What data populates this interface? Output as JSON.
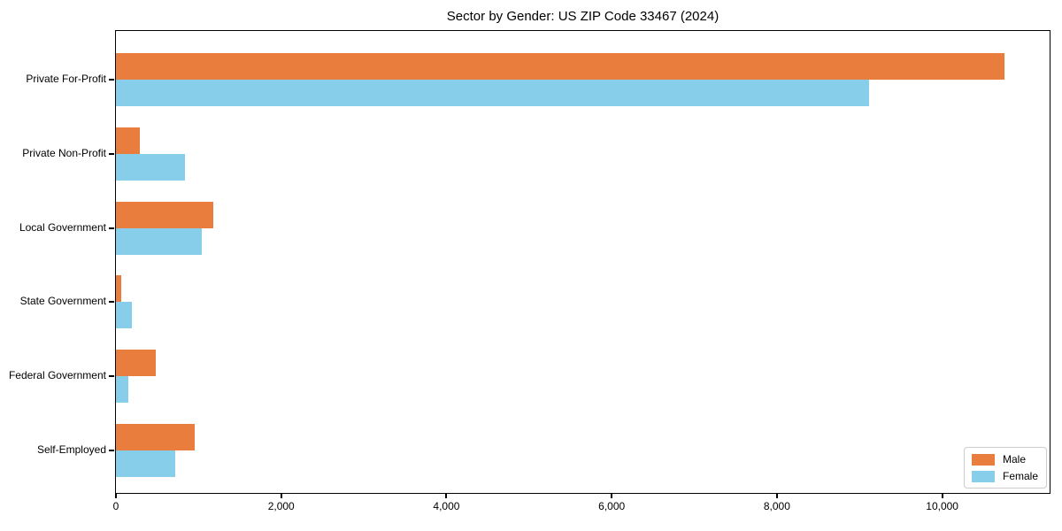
{
  "title": "Sector by Gender: US ZIP Code 33467 (2024)",
  "chart_data": {
    "type": "bar",
    "orientation": "horizontal",
    "title": "Sector by Gender: US ZIP Code 33467 (2024)",
    "categories": [
      "Private For-Profit",
      "Private Non-Profit",
      "Local Government",
      "State Government",
      "Federal Government",
      "Self-Employed"
    ],
    "series": [
      {
        "name": "Male",
        "color": "#E87D3E",
        "values": [
          10750,
          290,
          1180,
          65,
          480,
          950
        ]
      },
      {
        "name": "Female",
        "color": "#87CEEB",
        "values": [
          9110,
          840,
          1040,
          190,
          150,
          720
        ]
      }
    ],
    "xlabel": "",
    "ylabel": "",
    "xlim": [
      0,
      11300
    ],
    "xticks": [
      0,
      2000,
      4000,
      6000,
      8000,
      10000
    ],
    "xtick_labels": [
      "0",
      "2,000",
      "4,000",
      "6,000",
      "8,000",
      "10,000"
    ],
    "grid": false,
    "legend_position": "lower right"
  },
  "legend": {
    "items": [
      {
        "label": "Male",
        "color": "#E87D3E"
      },
      {
        "label": "Female",
        "color": "#87CEEB"
      }
    ]
  }
}
